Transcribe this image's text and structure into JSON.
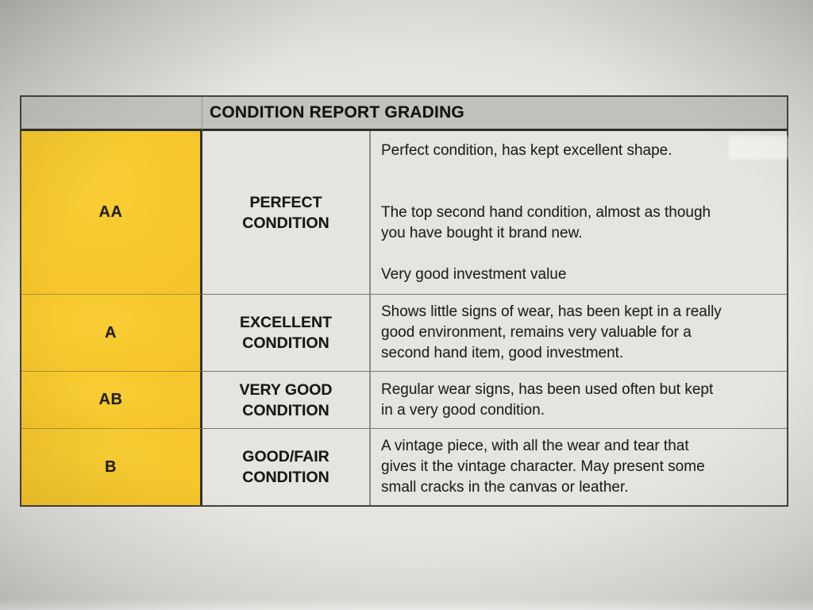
{
  "table": {
    "title": "CONDITION REPORT GRADING",
    "rows": [
      {
        "grade": "AA",
        "label_lines": [
          "PERFECT",
          "CONDITION"
        ],
        "desc_lines": [
          "Perfect condition, has kept excellent shape.",
          "",
          "",
          "The top second hand condition, almost as though",
          "you have bought it brand new.",
          "",
          "Very good investment value"
        ]
      },
      {
        "grade": "A",
        "label_lines": [
          "EXCELLENT",
          "CONDITION"
        ],
        "desc_lines": [
          "Shows little signs of wear, has been kept in a really",
          "good environment, remains very valuable for a",
          "second hand item, good investment."
        ]
      },
      {
        "grade": "AB",
        "label_lines": [
          "VERY GOOD",
          "CONDITION"
        ],
        "desc_lines": [
          "Regular wear signs, has been used often but kept",
          "in a very good condition."
        ]
      },
      {
        "grade": "B",
        "label_lines": [
          "GOOD/FAIR",
          "CONDITION"
        ],
        "desc_lines": [
          "A vintage piece, with all the wear and tear that",
          "gives it the vintage character. May present some",
          "small cracks in the canvas or leather."
        ]
      }
    ]
  },
  "colors": {
    "grade_yellow": "#f5c42a",
    "header_gray": "#c3c1bb",
    "cell_background": "#e6e4e1",
    "paper_background": "#e4e2df",
    "text": "#1f1e1b",
    "border_dark": "#33312c"
  }
}
